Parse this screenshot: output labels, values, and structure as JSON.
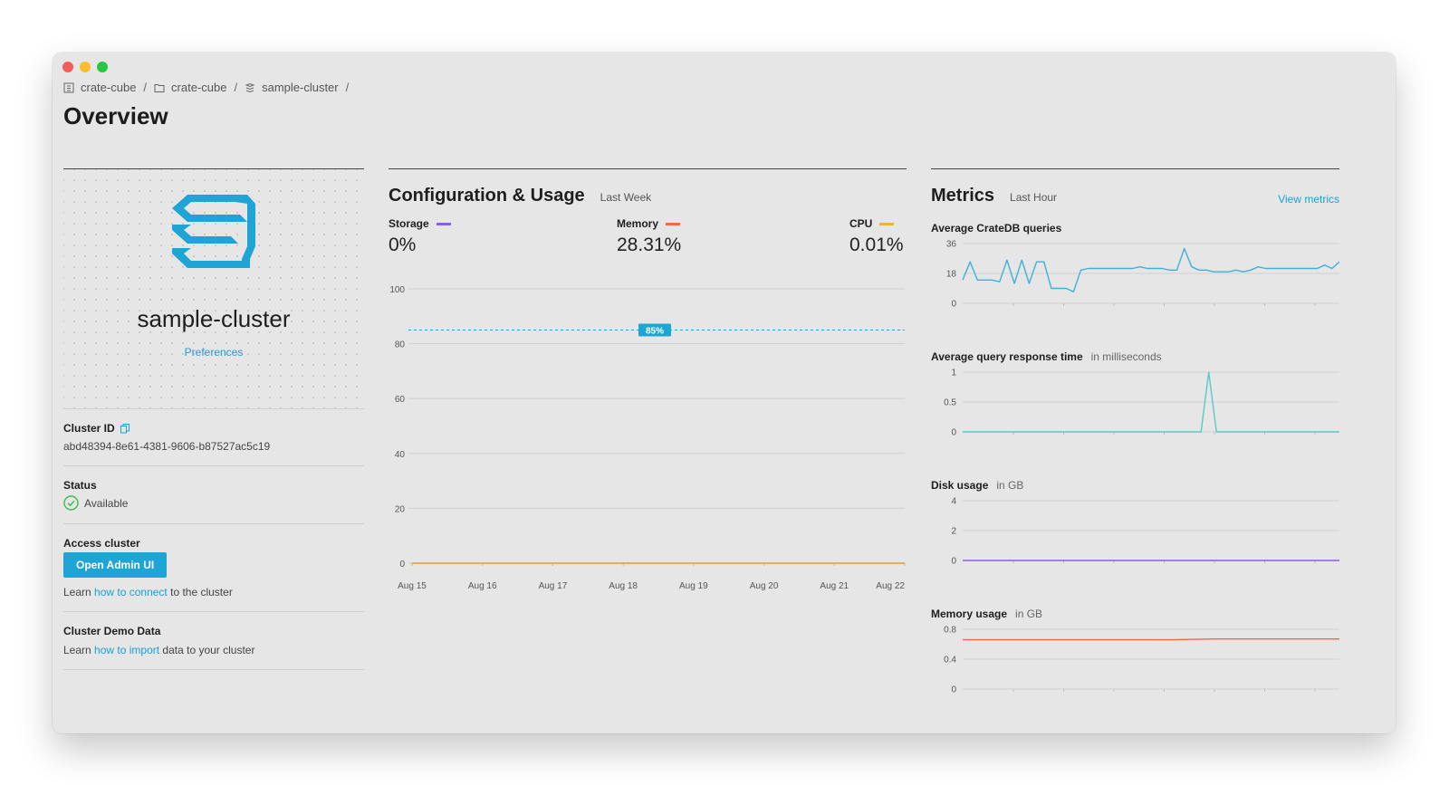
{
  "breadcrumb": [
    {
      "label": "crate-cube",
      "icon": "organization-icon"
    },
    {
      "label": "crate-cube",
      "icon": "folder-icon"
    },
    {
      "label": "sample-cluster",
      "icon": "cluster-stack-icon"
    }
  ],
  "breadcrumb_sep": "/",
  "page_title": "Overview",
  "cluster": {
    "name": "sample-cluster",
    "preferences_link": "Preferences",
    "id_label": "Cluster ID",
    "id_value": "abd48394-8e61-4381-9606-b87527ac5c19",
    "status_label": "Status",
    "status_value": "Available",
    "access_label": "Access cluster",
    "admin_button": "Open Admin UI",
    "learn_prefix": "Learn",
    "connect_link": "how to connect",
    "connect_suffix": "to the cluster",
    "demo_label": "Cluster Demo Data",
    "import_link": "how to import",
    "import_suffix": "data to your cluster"
  },
  "usage": {
    "title": "Configuration & Usage",
    "period": "Last Week",
    "stats": [
      {
        "label": "Storage",
        "value": "0%",
        "color": "#8a5fe0"
      },
      {
        "label": "Memory",
        "value": "28.31%",
        "color": "#ef6a45"
      },
      {
        "label": "CPU",
        "value": "0.01%",
        "color": "#f2b233"
      }
    ]
  },
  "metrics": {
    "title": "Metrics",
    "period": "Last Hour",
    "view_link": "View metrics",
    "queries_title": "Average CrateDB queries",
    "response_title": "Average query response time",
    "response_unit": "in milliseconds",
    "disk_title": "Disk usage",
    "disk_unit": "in GB",
    "memory_title": "Memory usage",
    "memory_unit": "in GB"
  },
  "chart_data": [
    {
      "type": "line",
      "title": "Configuration & Usage",
      "x": [
        "Aug 15",
        "Aug 16",
        "Aug 17",
        "Aug 18",
        "Aug 19",
        "Aug 20",
        "Aug 21",
        "Aug 22"
      ],
      "yticks": [
        "100",
        "80",
        "60",
        "40",
        "20",
        "0"
      ],
      "ylim": [
        0,
        100
      ],
      "threshold": {
        "value": 85,
        "label": "85%",
        "color": "#1ea5d6"
      },
      "series": [
        {
          "name": "Storage",
          "color": "#8a5fe0",
          "values": [
            0,
            0,
            0,
            0,
            0,
            0,
            0,
            0
          ]
        },
        {
          "name": "CPU",
          "color": "#f2b233",
          "values": [
            0.01,
            0.01,
            0.01,
            0.01,
            0.01,
            0.01,
            0.01,
            0.01
          ]
        }
      ]
    },
    {
      "type": "line",
      "title": "Average CrateDB queries",
      "yticks": [
        "36",
        "18",
        "0"
      ],
      "ylim": [
        0,
        36
      ],
      "color": "#3fb0d8",
      "values": [
        14,
        25,
        14,
        14,
        14,
        13,
        26,
        12,
        26,
        12,
        25,
        25,
        9,
        9,
        9,
        7,
        20,
        21,
        21,
        21,
        21,
        21,
        21,
        21,
        22,
        21,
        21,
        21,
        20,
        20,
        33,
        22,
        20,
        20,
        19,
        19,
        19,
        20,
        19,
        20,
        22,
        21,
        21,
        21,
        21,
        21,
        21,
        21,
        21,
        23,
        21,
        25
      ]
    },
    {
      "type": "line",
      "title": "Average query response time",
      "yticks": [
        "1",
        "0.5",
        "0"
      ],
      "ylim": [
        0,
        1
      ],
      "color": "#55ccc4",
      "values": [
        0,
        0,
        0,
        0,
        0,
        0,
        0,
        0,
        0,
        0,
        0,
        0,
        0,
        0,
        0,
        0,
        0,
        0,
        0,
        0,
        0,
        0,
        0,
        0,
        0,
        0,
        0,
        0,
        0,
        0,
        0,
        0,
        1,
        0,
        0,
        0,
        0,
        0,
        0,
        0,
        0,
        0,
        0,
        0,
        0,
        0,
        0,
        0,
        0,
        0
      ]
    },
    {
      "type": "line",
      "title": "Disk usage",
      "yticks": [
        "4",
        "2",
        "0"
      ],
      "ylim": [
        0,
        4
      ],
      "color": "#8a5fe0",
      "values": [
        0,
        0,
        0,
        0,
        0,
        0,
        0,
        0,
        0,
        0
      ]
    },
    {
      "type": "line",
      "title": "Memory usage",
      "yticks": [
        "0.8",
        "0.4",
        "0"
      ],
      "ylim": [
        0,
        0.8
      ],
      "color": "#ef6a45",
      "values": [
        0.66,
        0.66,
        0.66,
        0.66,
        0.66,
        0.66,
        0.67,
        0.67,
        0.67,
        0.67
      ]
    }
  ]
}
